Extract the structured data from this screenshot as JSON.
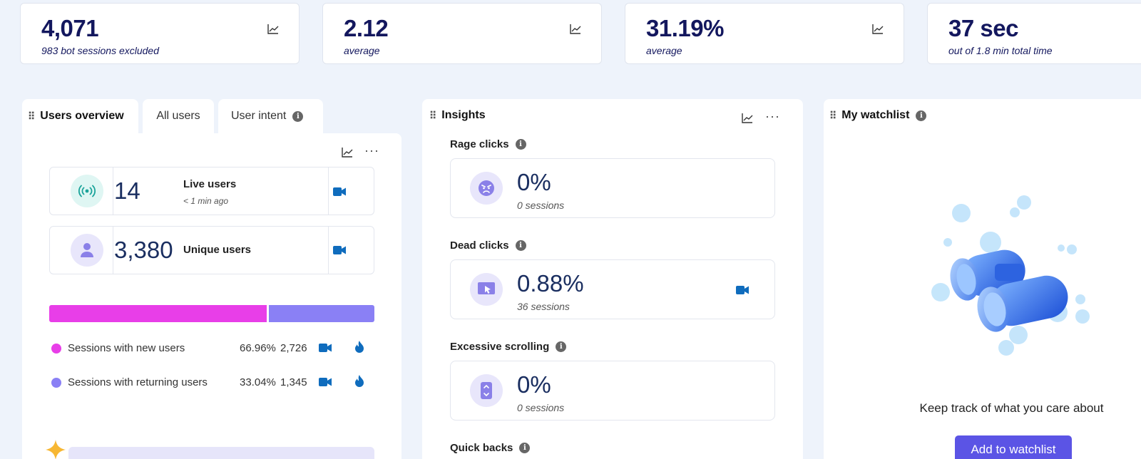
{
  "metrics": [
    {
      "value": "4,071",
      "sub": "983 bot sessions excluded"
    },
    {
      "value": "2.12",
      "sub": "average"
    },
    {
      "value": "31.19%",
      "sub": "average"
    },
    {
      "value": "37 sec",
      "sub": "out of 1.8 min total time"
    }
  ],
  "users_panel": {
    "tabs": [
      "Users overview",
      "All users",
      "User intent"
    ],
    "live": {
      "value": "14",
      "label": "Live users",
      "sub": "< 1 min ago"
    },
    "unique": {
      "value": "3,380",
      "label": "Unique users"
    },
    "split": {
      "new_fraction": 0.6696
    },
    "legend": [
      {
        "label": "Sessions with new users",
        "pct": "66.96%",
        "count": "2,726",
        "color": "#e83ee8"
      },
      {
        "label": "Sessions with returning users",
        "pct": "33.04%",
        "count": "1,345",
        "color": "#8a80f5"
      }
    ]
  },
  "insights": {
    "title": "Insights",
    "items": [
      {
        "label": "Rage clicks",
        "value": "0%",
        "sub": "0 sessions"
      },
      {
        "label": "Dead clicks",
        "value": "0.88%",
        "sub": "36 sessions"
      },
      {
        "label": "Excessive scrolling",
        "value": "0%",
        "sub": "0 sessions"
      },
      {
        "label": "Quick backs"
      }
    ]
  },
  "watchlist": {
    "title": "My watchlist",
    "message": "Keep track of what you care about",
    "button": "Add to watchlist"
  },
  "colors": {
    "accent": "#5b54e5",
    "navy": "#13175e",
    "camera": "#0f6cbd"
  }
}
